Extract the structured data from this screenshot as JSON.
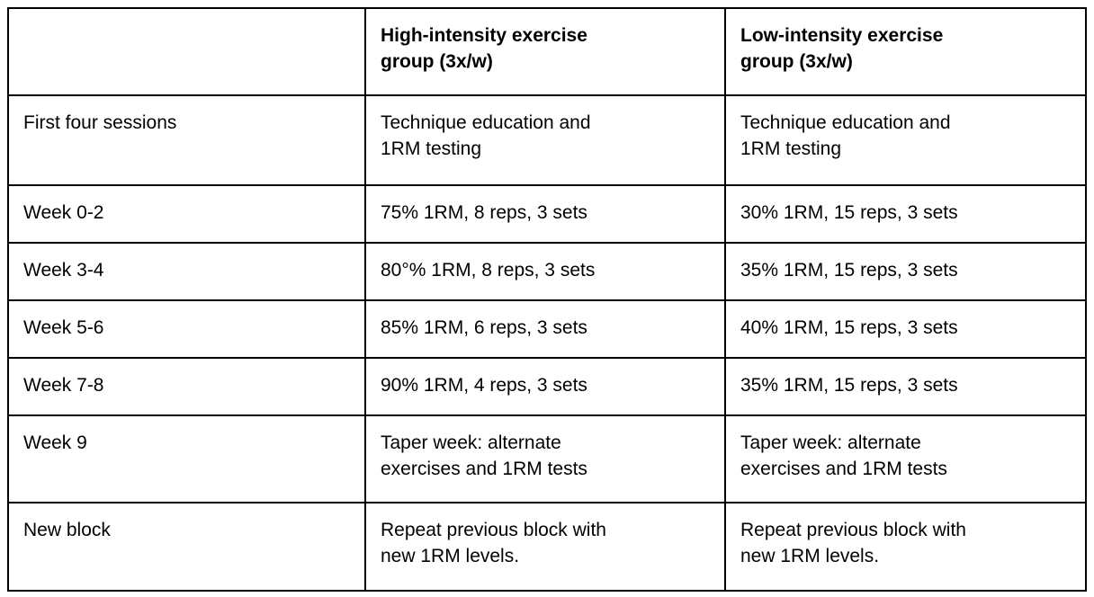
{
  "page": {
    "background": "#ffffff"
  },
  "table": {
    "border_color": "#000000",
    "text_color": "#000000",
    "background": "#ffffff",
    "columns": [
      {
        "label": ""
      },
      {
        "label": "High-intensity exercise\ngroup (3x/w)"
      },
      {
        "label": "Low-intensity exercise\ngroup (3x/w)"
      }
    ],
    "rows": [
      {
        "label": "First four sessions",
        "high": "Technique education and\n1RM testing",
        "low": "Technique education and\n1RM testing"
      },
      {
        "label": "Week 0-2",
        "high": "75% 1RM, 8 reps, 3 sets",
        "low": "30% 1RM, 15 reps, 3 sets"
      },
      {
        "label": "Week 3-4",
        "high": "80°% 1RM, 8 reps, 3 sets",
        "low": "35% 1RM, 15 reps, 3 sets"
      },
      {
        "label": "Week 5-6",
        "high": "85% 1RM, 6 reps, 3 sets",
        "low": "40% 1RM, 15 reps, 3 sets"
      },
      {
        "label": "Week 7-8",
        "high": "90% 1RM, 4 reps, 3 sets",
        "low": "35% 1RM, 15 reps, 3 sets"
      },
      {
        "label": "Week 9",
        "high": "Taper week: alternate\nexercises and 1RM tests",
        "low": "Taper week: alternate\nexercises and 1RM tests"
      },
      {
        "label": "New block",
        "high": "Repeat previous block with\nnew 1RM levels.",
        "low": "Repeat previous block with\nnew 1RM levels."
      }
    ]
  }
}
